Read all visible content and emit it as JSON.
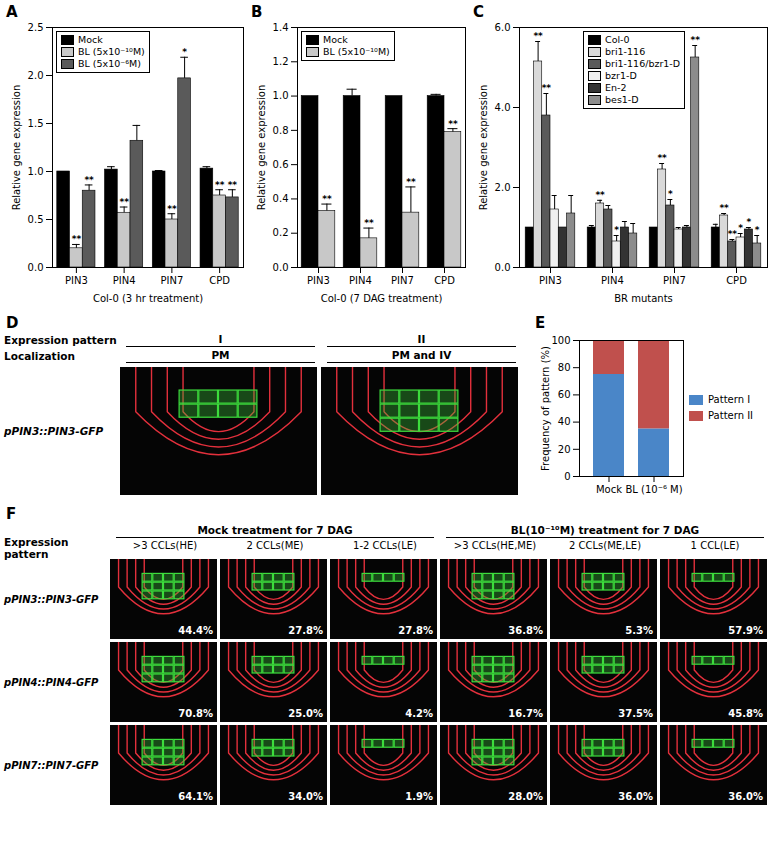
{
  "chart_data": [
    {
      "panel": "A",
      "type": "bar",
      "ylabel": "Relative gene expression",
      "xlabel": "Col-0 (3 hr treatment)",
      "categories": [
        "PIN3",
        "PIN4",
        "PIN7",
        "CPD"
      ],
      "series": [
        {
          "name": "Mock",
          "color": "#000000",
          "values": [
            1.0,
            1.02,
            1.0,
            1.03
          ],
          "errors": [
            0,
            0.03,
            0.01,
            0.02
          ],
          "significance": [
            null,
            null,
            null,
            null
          ]
        },
        {
          "name": "BL (5x10⁻¹⁰M)",
          "color": "#c8c8c8",
          "values": [
            0.2,
            0.57,
            0.5,
            0.75
          ],
          "errors": [
            0.04,
            0.06,
            0.06,
            0.06
          ],
          "significance": [
            "**",
            "**",
            "**",
            "**"
          ]
        },
        {
          "name": "BL (5x10⁻⁶M)",
          "color": "#5a5a5a",
          "values": [
            0.8,
            1.32,
            1.97,
            0.73
          ],
          "errors": [
            0.06,
            0.16,
            0.22,
            0.08
          ],
          "significance": [
            "**",
            null,
            "*",
            "**"
          ]
        }
      ],
      "ylim": [
        0,
        2.5
      ],
      "yticks": [
        {
          "value": 0,
          "label": "0.0"
        },
        {
          "value": 0.5,
          "label": "0.5"
        },
        {
          "value": 1,
          "label": "1.0"
        },
        {
          "value": 1.5,
          "label": "1.5"
        },
        {
          "value": 2,
          "label": "2.0"
        },
        {
          "value": 2.5,
          "label": "2.5"
        }
      ],
      "legend": "top-left"
    },
    {
      "panel": "B",
      "type": "bar",
      "ylabel": "Relative gene expression",
      "xlabel": "Col-0 (7 DAG treatment)",
      "categories": [
        "PIN3",
        "PIN4",
        "PIN7",
        "CPD"
      ],
      "series": [
        {
          "name": "Mock",
          "color": "#000000",
          "values": [
            1.0,
            1.0,
            1.0,
            1.0
          ],
          "errors": [
            0,
            0.04,
            0,
            0.01
          ],
          "significance": [
            null,
            null,
            null,
            null
          ]
        },
        {
          "name": "BL (5x10⁻¹⁰M)",
          "color": "#c8c8c8",
          "values": [
            0.33,
            0.17,
            0.32,
            0.79
          ],
          "errors": [
            0.04,
            0.06,
            0.15,
            0.02
          ],
          "significance": [
            "**",
            "**",
            "**",
            "**"
          ]
        }
      ],
      "ylim": [
        0,
        1.4
      ],
      "yticks": [
        {
          "value": 0,
          "label": "0.0"
        },
        {
          "value": 0.2,
          "label": "0.2"
        },
        {
          "value": 0.4,
          "label": "0.4"
        },
        {
          "value": 0.6,
          "label": "0.6"
        },
        {
          "value": 0.8,
          "label": "0.8"
        },
        {
          "value": 1,
          "label": "1.0"
        },
        {
          "value": 1.2,
          "label": "1.2"
        },
        {
          "value": 1.4,
          "label": "1.4"
        }
      ],
      "legend": "top-left"
    },
    {
      "panel": "C",
      "type": "bar",
      "ylabel": "Relative gene expression",
      "xlabel": "BR mutants",
      "categories": [
        "PIN3",
        "PIN4",
        "PIN7",
        "CPD"
      ],
      "series": [
        {
          "name": "Col-0",
          "color": "#000000",
          "values": [
            1.0,
            1.0,
            1.0,
            1.0
          ],
          "errors": [
            0,
            0.05,
            0,
            0.08
          ],
          "significance": [
            null,
            null,
            null,
            null
          ]
        },
        {
          "name": "bri1-116",
          "color": "#d9d9d9",
          "values": [
            5.15,
            1.6,
            2.45,
            1.3
          ],
          "errors": [
            0.5,
            0.08,
            0.15,
            0.05
          ],
          "significance": [
            "**",
            "**",
            "**",
            "**"
          ]
        },
        {
          "name": "bri1-116/bzr1-D",
          "color": "#5a5a5a",
          "values": [
            3.8,
            1.45,
            1.55,
            0.65
          ],
          "errors": [
            0.55,
            0.1,
            0.15,
            0.05
          ],
          "significance": [
            "**",
            null,
            "*",
            "**"
          ]
        },
        {
          "name": "bzr1-D",
          "color": "#f0f0f0",
          "values": [
            1.45,
            0.65,
            0.95,
            0.75
          ],
          "errors": [
            0.35,
            0.15,
            0.05,
            0.1
          ],
          "significance": [
            null,
            "*",
            null,
            "*"
          ]
        },
        {
          "name": "En-2",
          "color": "#333333",
          "values": [
            1.0,
            1.0,
            1.0,
            0.95
          ],
          "errors": [
            0,
            0.15,
            0.05,
            0.05
          ],
          "significance": [
            null,
            null,
            null,
            "*"
          ]
        },
        {
          "name": "bes1-D",
          "color": "#8c8c8c",
          "values": [
            1.35,
            0.85,
            5.25,
            0.6
          ],
          "errors": [
            0.45,
            0.25,
            0.3,
            0.2
          ],
          "significance": [
            null,
            null,
            "**",
            "*"
          ]
        }
      ],
      "ylim": [
        0,
        6
      ],
      "yticks": [
        {
          "value": 0,
          "label": "0.0"
        },
        {
          "value": 2,
          "label": "2.0"
        },
        {
          "value": 4,
          "label": "4.0"
        },
        {
          "value": 6,
          "label": "6.0"
        }
      ],
      "legend": "top"
    },
    {
      "panel": "E",
      "type": "bar",
      "stacked": true,
      "ylabel": "Frequency of pattern (%)",
      "categories": [
        "Mock",
        "BL (10⁻⁶ M)"
      ],
      "series": [
        {
          "name": "Pattern I",
          "color": "#4a86c8",
          "values": [
            75,
            35
          ]
        },
        {
          "name": "Pattern II",
          "color": "#c0504d",
          "values": [
            25,
            65
          ]
        }
      ],
      "ylim": [
        0,
        100
      ],
      "yticks": [
        0,
        20,
        40,
        60,
        80,
        100
      ],
      "legend": "right"
    }
  ],
  "panel_D": {
    "panel": "D",
    "header_rows": [
      {
        "label": "Expression pattern",
        "columns": [
          "I",
          "II"
        ]
      },
      {
        "label": "Localization",
        "columns": [
          "PM",
          "PM and IV"
        ]
      }
    ],
    "rows": [
      {
        "label": "pPIN3::PIN3-GFP"
      }
    ]
  },
  "panel_F": {
    "panel": "F",
    "header_label": "Expression pattern",
    "groups": [
      {
        "title": "Mock treatment for 7 DAG",
        "columns": [
          ">3 CCLs(HE)",
          "2 CCLs(ME)",
          "1-2 CCLs(LE)"
        ]
      },
      {
        "title": "BL(10⁻¹⁰M) treatment for 7 DAG",
        "columns": [
          ">3 CCLs(HE,ME)",
          "2 CCLs(ME,LE)",
          "1 CCL(LE)"
        ]
      }
    ],
    "rows": [
      {
        "label": "pPIN3::PIN3-GFP",
        "percentages": [
          "44.4%",
          "27.8%",
          "27.8%",
          "36.8%",
          "5.3%",
          "57.9%"
        ]
      },
      {
        "label": "pPIN4::PIN4-GFP",
        "percentages": [
          "70.8%",
          "25.0%",
          "4.2%",
          "16.7%",
          "37.5%",
          "45.8%"
        ]
      },
      {
        "label": "pPIN7::PIN7-GFP",
        "percentages": [
          "64.1%",
          "34.0%",
          "1.9%",
          "28.0%",
          "36.0%",
          "36.0%"
        ]
      }
    ]
  }
}
